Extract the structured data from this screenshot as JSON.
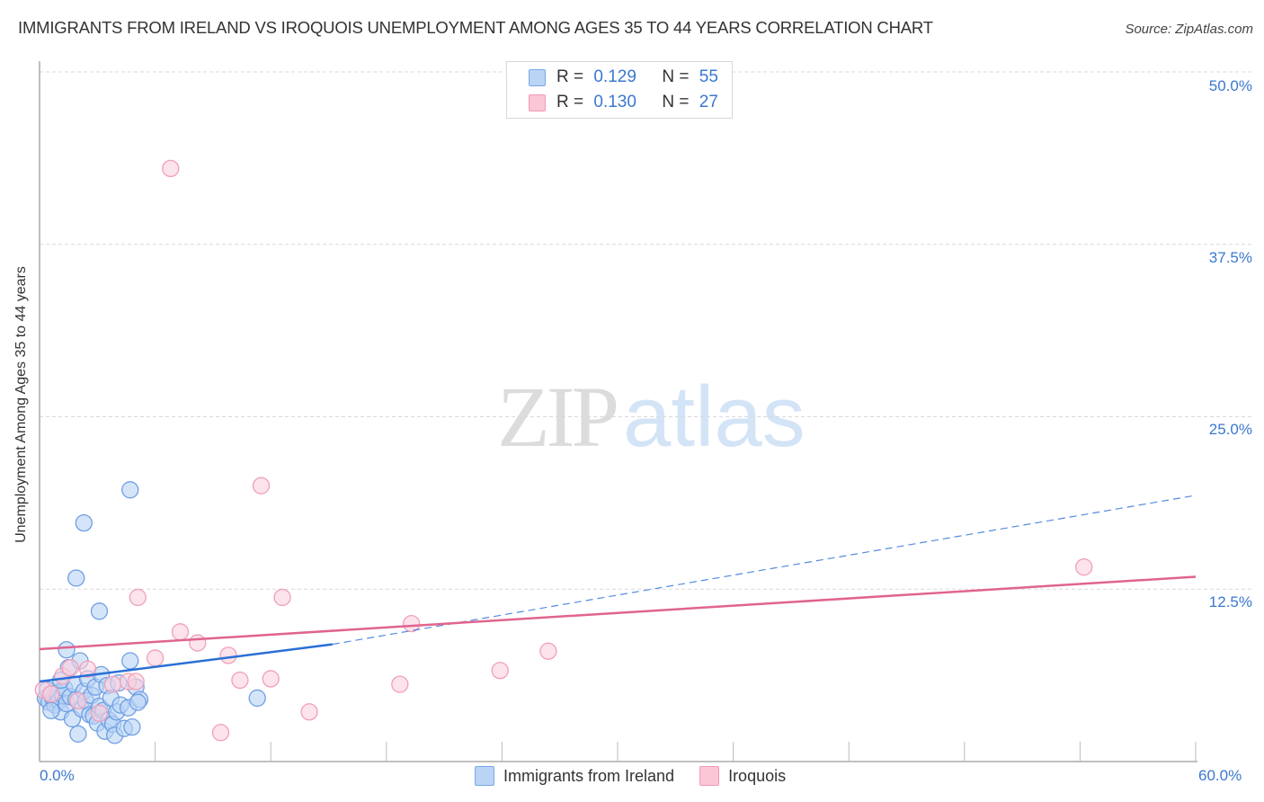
{
  "header": {
    "title": "IMMIGRANTS FROM IRELAND VS IROQUOIS UNEMPLOYMENT AMONG AGES 35 TO 44 YEARS CORRELATION CHART",
    "source": "Source: ZipAtlas.com"
  },
  "watermark": {
    "zip": "ZIP",
    "atlas": "atlas"
  },
  "legend": {
    "series": [
      {
        "r_label": "R = ",
        "r_value": "0.129",
        "n_label": "N = ",
        "n_value": "55"
      },
      {
        "r_label": "R = ",
        "r_value": "0.130",
        "n_label": "N = ",
        "n_value": "27"
      }
    ]
  },
  "axes": {
    "y_label": "Unemployment Among Ages 35 to 44 years",
    "y_ticks": [
      "50.0%",
      "37.5%",
      "25.0%",
      "12.5%"
    ],
    "x_min_label": "0.0%",
    "x_max_label": "60.0%"
  },
  "bottom_legend": {
    "items": [
      "Immigrants from Ireland",
      "Iroquois"
    ]
  },
  "colors": {
    "blue_fill": "#b9d4f5",
    "blue_stroke": "#6f9fe3",
    "blue_line": "#2a6fd6",
    "pink_fill": "#fbd0de",
    "pink_stroke": "#f0a0b9",
    "pink_line": "#e0648e",
    "tick_text": "#3b78d0",
    "grid": "#d9d9d9"
  },
  "chart_data": {
    "type": "scatter",
    "title": "IMMIGRANTS FROM IRELAND VS IROQUOIS UNEMPLOYMENT AMONG AGES 35 TO 44 YEARS CORRELATION CHART",
    "xlabel": "",
    "ylabel": "Unemployment Among Ages 35 to 44 years",
    "xlim": [
      0,
      60
    ],
    "ylim": [
      0,
      50
    ],
    "y_ticks": [
      12.5,
      25.0,
      37.5,
      50.0
    ],
    "x_ticks_labeled": [
      0,
      60
    ],
    "grid": "horizontal dashed",
    "legend_position": "top-center and bottom",
    "series": [
      {
        "name": "Immigrants from Ireland",
        "R": 0.129,
        "N": 55,
        "trend": {
          "x": [
            0,
            15.2
          ],
          "y": [
            5.8,
            8.5
          ],
          "extended_dashed_to": [
            60,
            19.3
          ]
        },
        "points": [
          [
            0.3,
            4.6
          ],
          [
            0.4,
            5.2
          ],
          [
            0.5,
            4.3
          ],
          [
            0.6,
            4.9
          ],
          [
            0.7,
            4.5
          ],
          [
            0.8,
            4.1
          ],
          [
            0.9,
            5.0
          ],
          [
            1.0,
            4.4
          ],
          [
            1.1,
            3.6
          ],
          [
            1.2,
            4.8
          ],
          [
            1.3,
            5.3
          ],
          [
            1.4,
            4.2
          ],
          [
            1.5,
            6.8
          ],
          [
            1.6,
            4.7
          ],
          [
            1.7,
            3.1
          ],
          [
            1.8,
            5.6
          ],
          [
            1.9,
            4.5
          ],
          [
            2.0,
            2.0
          ],
          [
            2.1,
            7.3
          ],
          [
            2.2,
            3.8
          ],
          [
            2.3,
            5.1
          ],
          [
            2.4,
            4.4
          ],
          [
            2.5,
            6.0
          ],
          [
            2.6,
            3.4
          ],
          [
            2.7,
            4.8
          ],
          [
            2.8,
            3.3
          ],
          [
            2.9,
            5.4
          ],
          [
            3.0,
            2.8
          ],
          [
            3.1,
            4.0
          ],
          [
            3.2,
            6.3
          ],
          [
            3.3,
            3.7
          ],
          [
            3.4,
            2.2
          ],
          [
            3.5,
            5.5
          ],
          [
            3.6,
            3.0
          ],
          [
            3.7,
            4.6
          ],
          [
            3.8,
            2.7
          ],
          [
            3.9,
            1.9
          ],
          [
            4.0,
            3.6
          ],
          [
            4.1,
            5.7
          ],
          [
            4.2,
            4.1
          ],
          [
            4.4,
            2.4
          ],
          [
            4.6,
            3.9
          ],
          [
            4.8,
            2.5
          ],
          [
            5.0,
            5.4
          ],
          [
            5.2,
            4.5
          ],
          [
            1.4,
            8.1
          ],
          [
            3.1,
            10.9
          ],
          [
            1.9,
            13.3
          ],
          [
            2.3,
            17.3
          ],
          [
            4.7,
            19.7
          ],
          [
            4.7,
            7.3
          ],
          [
            5.1,
            4.3
          ],
          [
            11.3,
            4.6
          ],
          [
            1.1,
            5.9
          ],
          [
            0.6,
            3.7
          ]
        ]
      },
      {
        "name": "Iroquois",
        "R": 0.13,
        "N": 27,
        "trend": {
          "x": [
            0,
            60
          ],
          "y": [
            8.15,
            13.4
          ]
        },
        "points": [
          [
            0.2,
            5.2
          ],
          [
            0.6,
            4.9
          ],
          [
            1.2,
            6.2
          ],
          [
            1.6,
            6.8
          ],
          [
            2.0,
            4.4
          ],
          [
            2.5,
            6.7
          ],
          [
            3.1,
            3.5
          ],
          [
            3.8,
            5.6
          ],
          [
            4.6,
            5.8
          ],
          [
            5.0,
            5.8
          ],
          [
            5.1,
            11.9
          ],
          [
            6.0,
            7.5
          ],
          [
            6.8,
            43.0
          ],
          [
            7.3,
            9.4
          ],
          [
            8.2,
            8.6
          ],
          [
            9.4,
            2.1
          ],
          [
            9.8,
            7.7
          ],
          [
            10.4,
            5.9
          ],
          [
            11.5,
            20.0
          ],
          [
            12.0,
            6.0
          ],
          [
            12.6,
            11.9
          ],
          [
            14.0,
            3.6
          ],
          [
            18.7,
            5.6
          ],
          [
            19.3,
            10.0
          ],
          [
            23.9,
            6.6
          ],
          [
            26.4,
            8.0
          ],
          [
            54.2,
            14.1
          ]
        ]
      }
    ]
  }
}
